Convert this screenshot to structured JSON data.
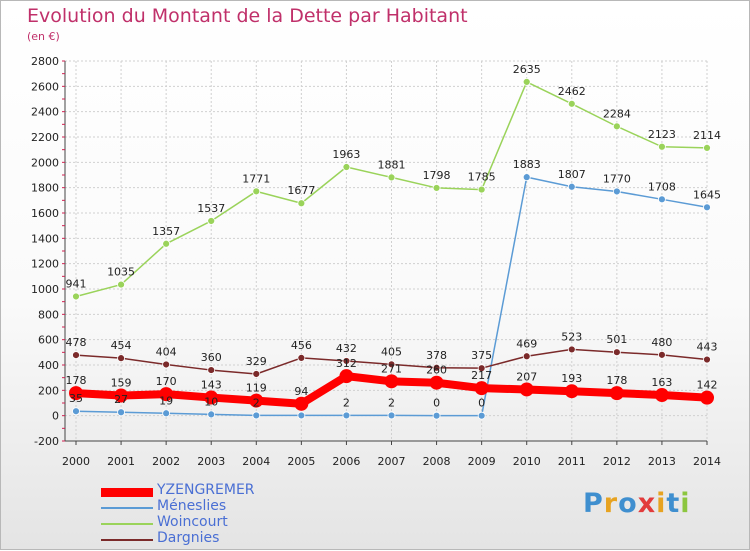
{
  "header": {
    "title": "Evolution du Montant de la Dette par Habitant",
    "subtitle": "(en €)"
  },
  "brand": {
    "letters": [
      "P",
      "r",
      "o",
      "x",
      "i",
      "t",
      "i"
    ],
    "colors": [
      "#3f8fcf",
      "#e7a321",
      "#3f8fcf",
      "#e23b3b",
      "#e7a321",
      "#3f8fcf",
      "#8cc63f"
    ]
  },
  "chart_data": {
    "type": "line",
    "title": "Evolution du Montant de la Dette par Habitant",
    "subtitle": "(en €)",
    "xlabel": "",
    "ylabel": "",
    "x": [
      "2000",
      "2001",
      "2002",
      "2003",
      "2004",
      "2005",
      "2006",
      "2007",
      "2008",
      "2009",
      "2010",
      "2011",
      "2012",
      "2013",
      "2014"
    ],
    "ylim": [
      -200,
      2800
    ],
    "yticks": [
      -200,
      0,
      200,
      400,
      600,
      800,
      1000,
      1200,
      1400,
      1600,
      1800,
      2000,
      2200,
      2400,
      2600,
      2800
    ],
    "grid": true,
    "legend_position": "bottom-left",
    "series": [
      {
        "name": "YZENGREMER",
        "color": "#ff0000",
        "values": [
          178,
          159,
          170,
          143,
          119,
          94,
          312,
          271,
          260,
          217,
          207,
          193,
          178,
          163,
          142
        ]
      },
      {
        "name": "Méneslies",
        "color": "#5b9bd5",
        "values": [
          35,
          27,
          19,
          10,
          2,
          2,
          2,
          2,
          0,
          0,
          1883,
          1807,
          1770,
          1708,
          1645
        ]
      },
      {
        "name": "Woincourt",
        "color": "#9ad35a",
        "values": [
          941,
          1035,
          1357,
          1537,
          1771,
          1677,
          1963,
          1881,
          1798,
          1785,
          2635,
          2462,
          2284,
          2123,
          2114
        ]
      },
      {
        "name": "Dargnies",
        "color": "#7b2a2a",
        "values": [
          478,
          454,
          404,
          360,
          329,
          456,
          432,
          405,
          378,
          375,
          469,
          523,
          501,
          480,
          443
        ]
      }
    ],
    "labels": [
      {
        "series": "YZENGREMER",
        "values": [
          "178",
          "159",
          "170",
          "143",
          "119",
          "94",
          "312",
          "271",
          "260",
          "217",
          "207",
          "193",
          "178",
          "163",
          "142"
        ]
      },
      {
        "series": "Méneslies",
        "values": [
          "35",
          "27",
          "19",
          "10",
          "2",
          "",
          "2",
          "2",
          "0",
          "0",
          "1883",
          "1807",
          "1770",
          "1708",
          "1645"
        ]
      },
      {
        "series": "Woincourt",
        "values": [
          "941",
          "1035",
          "1357",
          "1537",
          "1771",
          "1677",
          "1963",
          "1881",
          "1798",
          "1785",
          "2635",
          "2462",
          "2284",
          "2123",
          "2114"
        ]
      },
      {
        "series": "Dargnies",
        "values": [
          "478",
          "454",
          "404",
          "360",
          "329",
          "456",
          "432",
          "405",
          "378",
          "375",
          "469",
          "523",
          "501",
          "480",
          "443"
        ]
      }
    ]
  }
}
